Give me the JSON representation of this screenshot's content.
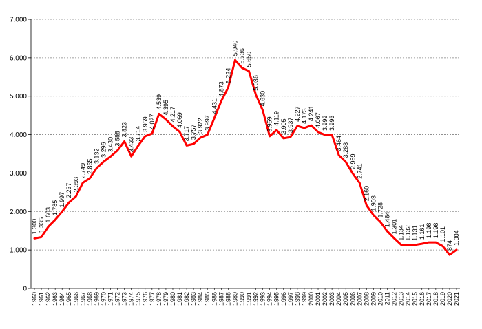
{
  "chart_data": {
    "type": "line",
    "title": "",
    "xlabel": "",
    "ylabel": "",
    "ylim": [
      0,
      7000
    ],
    "yticks": [
      0,
      1000,
      2000,
      3000,
      4000,
      5000,
      6000,
      7000
    ],
    "ytick_labels": [
      "0",
      "1.000",
      "2.000",
      "3.000",
      "4.000",
      "5.000",
      "6.000",
      "7.000"
    ],
    "grid": "horizontal dotted",
    "legend": "none",
    "line_color": "#ff0000",
    "x": [
      "1960",
      "1961",
      "1962",
      "1963",
      "1964",
      "1965",
      "1966",
      "1967",
      "1968",
      "1969",
      "1970",
      "1971",
      "1972",
      "1973",
      "1974",
      "1975",
      "1976",
      "1977",
      "1978",
      "1979",
      "1980",
      "1981",
      "1982",
      "1983",
      "1984",
      "1985",
      "1986",
      "1987",
      "1988",
      "1989",
      "1990",
      "1991",
      "1992",
      "1993",
      "1994",
      "1995",
      "1996",
      "1997",
      "1998",
      "1999",
      "2000",
      "2001",
      "2002",
      "2003",
      "2004",
      "2005",
      "2006",
      "2007",
      "2008",
      "2009",
      "2010",
      "2011",
      "2012",
      "2013",
      "2014",
      "2015",
      "2016",
      "2017",
      "2018",
      "2019",
      "2020",
      "2021"
    ],
    "values": [
      1300,
      1335,
      1603,
      1785,
      1997,
      2237,
      2393,
      2749,
      2865,
      3132,
      3296,
      3430,
      3588,
      3823,
      3433,
      3714,
      3959,
      4027,
      4539,
      4395,
      4217,
      4069,
      3717,
      3757,
      3922,
      3997,
      4431,
      4873,
      5224,
      5940,
      5736,
      5650,
      5036,
      4630,
      3959,
      4119,
      3905,
      3937,
      4227,
      4173,
      4241,
      4067,
      3992,
      3993,
      3464,
      3288,
      2989,
      2741,
      2160,
      1903,
      1728,
      1484,
      1301,
      1134,
      1132,
      1131,
      1161,
      1198,
      1198,
      1101,
      874,
      1004
    ],
    "value_labels": [
      "1.300",
      "1.335",
      "1.603",
      "1.785",
      "1.997",
      "2.237",
      "2.393",
      "2.749",
      "2.865",
      "3.132",
      "3.296",
      "3.430",
      "3.588",
      "3.823",
      "3.433",
      "3.714",
      "3.959",
      "4.027",
      "4.539",
      "4.395",
      "4.217",
      "4.069",
      "3.717",
      "3.757",
      "3.922",
      "3.997",
      "4.431",
      "4.873",
      "5.224",
      "5.940",
      "5.736",
      "5.650",
      "5.036",
      "4.630",
      "3.959",
      "4.119",
      "3.905",
      "3.937",
      "4.227",
      "4.173",
      "4.241",
      "4.067",
      "3.992",
      "3.993",
      "3.464",
      "3.288",
      "2.989",
      "2.741",
      "2.160",
      "1.903",
      "1.728",
      "1.484",
      "1.301",
      "1.134",
      "1.132",
      "1.131",
      "1.161",
      "1.198",
      "1.198",
      "1.101",
      "874",
      "1.004"
    ]
  }
}
